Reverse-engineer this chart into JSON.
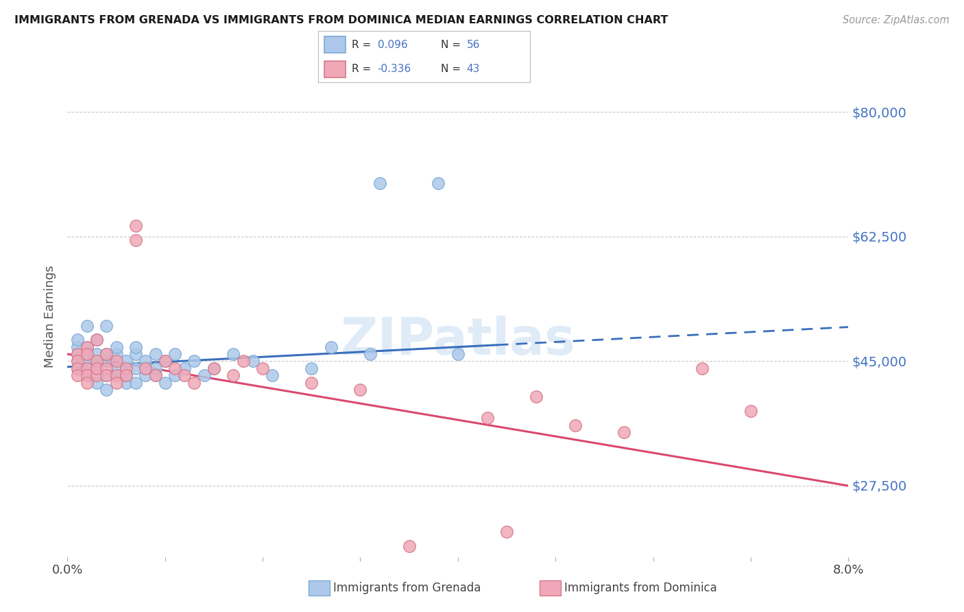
{
  "title": "IMMIGRANTS FROM GRENADA VS IMMIGRANTS FROM DOMINICA MEDIAN EARNINGS CORRELATION CHART",
  "source": "Source: ZipAtlas.com",
  "xlabel": "",
  "ylabel": "Median Earnings",
  "xlim": [
    0.0,
    0.08
  ],
  "ylim": [
    17500,
    85000
  ],
  "yticks": [
    27500,
    45000,
    62500,
    80000
  ],
  "ytick_labels": [
    "$27,500",
    "$45,000",
    "$62,500",
    "$80,000"
  ],
  "xticks": [
    0.0,
    0.08
  ],
  "xtick_labels": [
    "0.0%",
    "8.0%"
  ],
  "grenada_R": 0.096,
  "grenada_N": 56,
  "dominica_R": -0.336,
  "dominica_N": 43,
  "grenada_color": "#adc8ea",
  "grenada_edge": "#7aaad4",
  "dominica_color": "#f0a8b8",
  "dominica_edge": "#d47888",
  "trend_grenada_color": "#3a6fbc",
  "trend_dominica_color": "#d94870",
  "background_color": "#ffffff",
  "grid_color": "#c8c8c8",
  "watermark": "ZIPatlas",
  "grenada_x": [
    0.001,
    0.001,
    0.001,
    0.001,
    0.001,
    0.002,
    0.002,
    0.002,
    0.002,
    0.002,
    0.002,
    0.003,
    0.003,
    0.003,
    0.003,
    0.003,
    0.004,
    0.004,
    0.004,
    0.004,
    0.004,
    0.005,
    0.005,
    0.005,
    0.005,
    0.006,
    0.006,
    0.006,
    0.006,
    0.007,
    0.007,
    0.007,
    0.007,
    0.008,
    0.008,
    0.008,
    0.009,
    0.009,
    0.009,
    0.01,
    0.01,
    0.011,
    0.011,
    0.012,
    0.013,
    0.014,
    0.015,
    0.017,
    0.019,
    0.021,
    0.025,
    0.027,
    0.031,
    0.032,
    0.038,
    0.04
  ],
  "grenada_y": [
    45000,
    47000,
    44000,
    46000,
    48000,
    43000,
    45000,
    46000,
    47000,
    44000,
    50000,
    42000,
    44000,
    45000,
    46000,
    48000,
    41000,
    43000,
    45000,
    46000,
    50000,
    43000,
    44000,
    46000,
    47000,
    42000,
    43000,
    44000,
    45000,
    42000,
    44000,
    46000,
    47000,
    43000,
    44000,
    45000,
    43000,
    44000,
    46000,
    42000,
    45000,
    43000,
    46000,
    44000,
    45000,
    43000,
    44000,
    46000,
    45000,
    43000,
    44000,
    47000,
    46000,
    70000,
    70000,
    46000
  ],
  "dominica_x": [
    0.001,
    0.001,
    0.001,
    0.001,
    0.002,
    0.002,
    0.002,
    0.002,
    0.002,
    0.003,
    0.003,
    0.003,
    0.003,
    0.004,
    0.004,
    0.004,
    0.005,
    0.005,
    0.005,
    0.006,
    0.006,
    0.007,
    0.007,
    0.008,
    0.009,
    0.01,
    0.011,
    0.012,
    0.013,
    0.015,
    0.017,
    0.018,
    0.02,
    0.025,
    0.03,
    0.043,
    0.048,
    0.052,
    0.057,
    0.065,
    0.035,
    0.045,
    0.07
  ],
  "dominica_y": [
    46000,
    45000,
    44000,
    43000,
    47000,
    46000,
    44000,
    43000,
    42000,
    48000,
    45000,
    43000,
    44000,
    46000,
    44000,
    43000,
    45000,
    43000,
    42000,
    44000,
    43000,
    64000,
    62000,
    44000,
    43000,
    45000,
    44000,
    43000,
    42000,
    44000,
    43000,
    45000,
    44000,
    42000,
    41000,
    37000,
    40000,
    36000,
    35000,
    44000,
    19000,
    21000,
    38000
  ],
  "grenada_trend_x0": 0.0,
  "grenada_trend_y0": 44200,
  "grenada_trend_x1": 0.08,
  "grenada_trend_y1": 49800,
  "dominica_trend_x0": 0.0,
  "dominica_trend_y0": 46000,
  "dominica_trend_x1": 0.08,
  "dominica_trend_y1": 27500
}
